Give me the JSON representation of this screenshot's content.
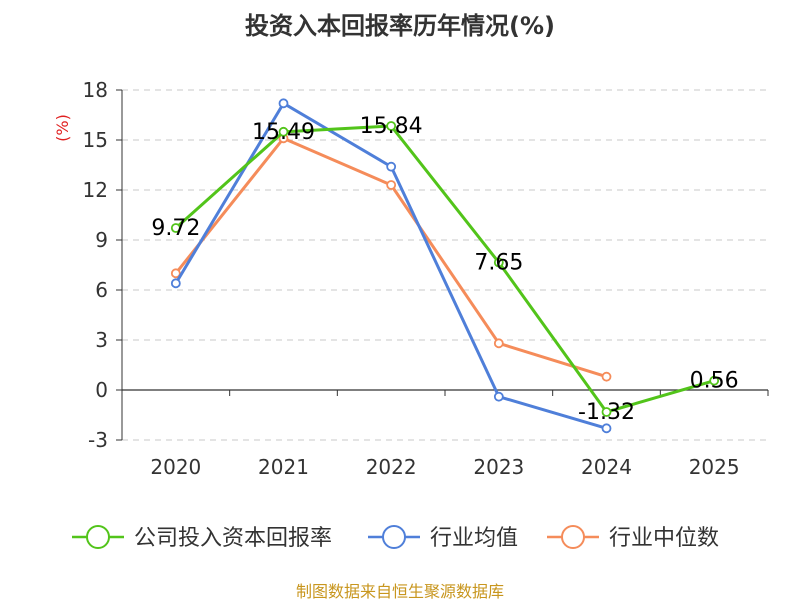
{
  "chart_data": {
    "type": "line",
    "title": "投资入本回报率历年情况(%)",
    "ylabel": "(%)",
    "xlabel": "",
    "categories": [
      "2020",
      "2021",
      "2022",
      "2023",
      "2024",
      "2025"
    ],
    "ylim": [
      -3,
      18
    ],
    "yticks": [
      -3,
      0,
      3,
      6,
      9,
      12,
      15,
      18
    ],
    "grid": true,
    "legend_position": "bottom",
    "series": [
      {
        "name": "公司投入资本回报率",
        "color": "#52c41a",
        "values": [
          9.72,
          15.49,
          15.84,
          7.65,
          -1.32,
          0.56
        ],
        "labels": [
          "9.72",
          "15.49",
          "15.84",
          "7.65",
          "-1.32",
          "0.56"
        ]
      },
      {
        "name": "行业均值",
        "color": "#4f7fd9",
        "values": [
          6.4,
          17.2,
          13.4,
          -0.4,
          -2.3,
          null
        ]
      },
      {
        "name": "行业中位数",
        "color": "#f58c5a",
        "values": [
          7.0,
          15.1,
          12.3,
          2.8,
          0.8,
          null
        ]
      }
    ],
    "source": "制图数据来自恒生聚源数据库"
  }
}
